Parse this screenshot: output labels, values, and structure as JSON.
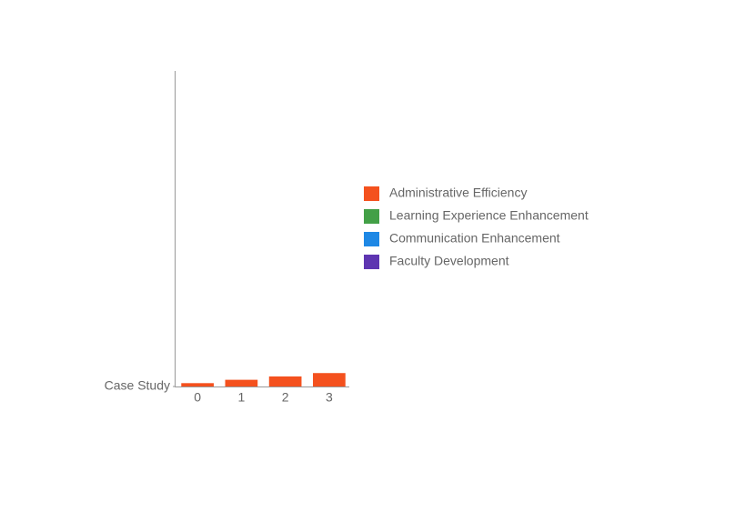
{
  "chart_data": {
    "type": "bar",
    "categories": [
      "0",
      "1",
      "2",
      "3"
    ],
    "series": [
      {
        "name": "Administrative Efficiency",
        "color": "#f4511e",
        "values": [
          1,
          2,
          3,
          4
        ]
      },
      {
        "name": "Learning Experience Enhancement",
        "color": "#43a047",
        "values": [
          0,
          0,
          0,
          0
        ]
      },
      {
        "name": "Communication Enhancement",
        "color": "#1e88e5",
        "values": [
          0,
          0,
          0,
          0
        ]
      },
      {
        "name": "Faculty Development",
        "color": "#5e35b1",
        "values": [
          0,
          0,
          0,
          0
        ]
      }
    ],
    "ylim": [
      0,
      94
    ],
    "yticks": [
      {
        "value": 0,
        "label": "Case Study"
      }
    ],
    "legend": "right"
  }
}
